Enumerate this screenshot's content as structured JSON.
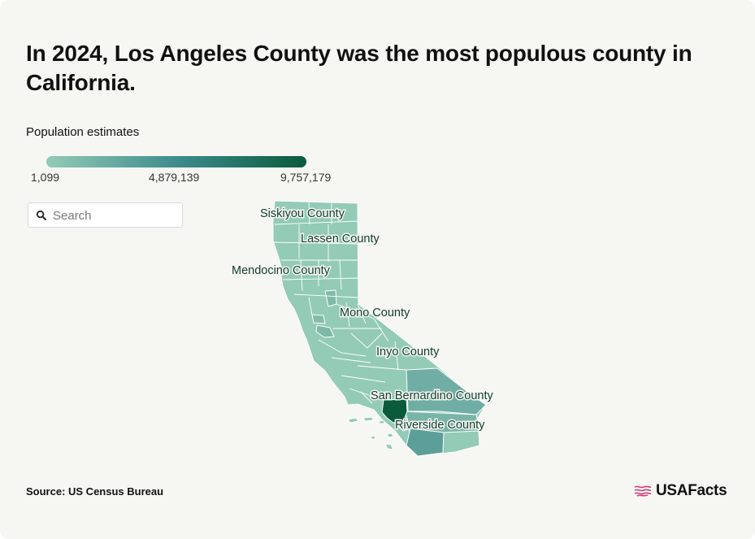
{
  "title": "In 2024, Los Angeles County was the most populous county in California.",
  "legend": {
    "title": "Population estimates",
    "min_label": "1,099",
    "mid_label": "4,879,139",
    "max_label": "9,757,179",
    "colors": {
      "low": "#93cbb6",
      "mid": "#3f8c8d",
      "high": "#0a5a3c"
    }
  },
  "search": {
    "placeholder": "Search",
    "value": ""
  },
  "map_labels": {
    "siskiyou": "Siskiyou County",
    "lassen": "Lassen County",
    "mendocino": "Mendocino County",
    "mono": "Mono County",
    "inyo": "Inyo County",
    "san_bernardino": "San Bernardino County",
    "riverside": "Riverside County"
  },
  "county_colors": {
    "default": "#93cbb6",
    "los_angeles": "#0a5a3c",
    "san_bernardino": "#70aea5",
    "riverside": "#79b4a8",
    "san_diego": "#5c9f98",
    "orange": "#65a59d",
    "sacramento": "#7fbaa9",
    "santa_clara": "#7db8a8",
    "alameda": "#83bcaa",
    "islands": "#93cbb6"
  },
  "source": "Source: US Census Bureau",
  "logo": {
    "text": "USAFacts",
    "icon": "usa-flag-icon"
  }
}
